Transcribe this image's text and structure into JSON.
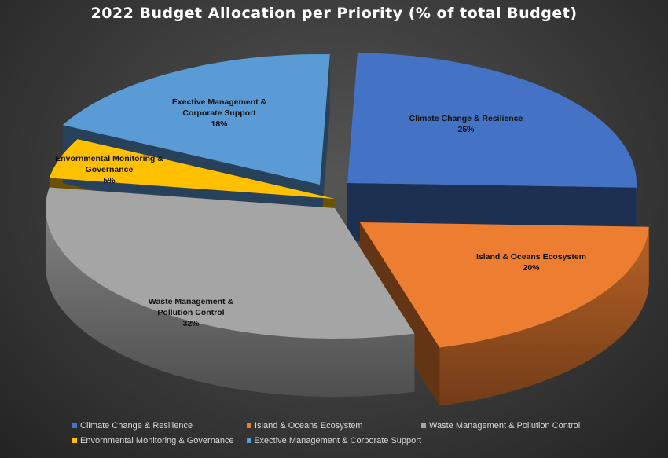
{
  "chart_data": {
    "type": "pie",
    "title": "2022 Budget Allocation per Priority (% of total Budget)",
    "legend_position": "bottom",
    "slices": [
      {
        "name": "Climate Change & Resilience",
        "label_lines": [
          "Climate Change & Resilience"
        ],
        "value": 25,
        "value_label": "25%",
        "color": "#4472c4"
      },
      {
        "name": "Island & Oceans Ecosystem",
        "label_lines": [
          "Island & Oceans Ecosystem"
        ],
        "value": 20,
        "value_label": "20%",
        "color": "#ed7d31"
      },
      {
        "name": "Waste Management & Pollution Control",
        "label_lines": [
          "Waste Management &",
          "Pollution Control"
        ],
        "value": 32,
        "value_label": "32%",
        "color": "#a5a5a5"
      },
      {
        "name": "Envornmental Monitoring & Governance",
        "label_lines": [
          "Envornmental Monitoring &",
          "Governance"
        ],
        "value": 5,
        "value_label": "5%",
        "color": "#ffc000"
      },
      {
        "name": "Exective Management & Corporate Support",
        "label_lines": [
          "Exective Management &",
          "Corporate Support"
        ],
        "value": 18,
        "value_label": "18%",
        "color": "#5b9bd5"
      }
    ]
  }
}
